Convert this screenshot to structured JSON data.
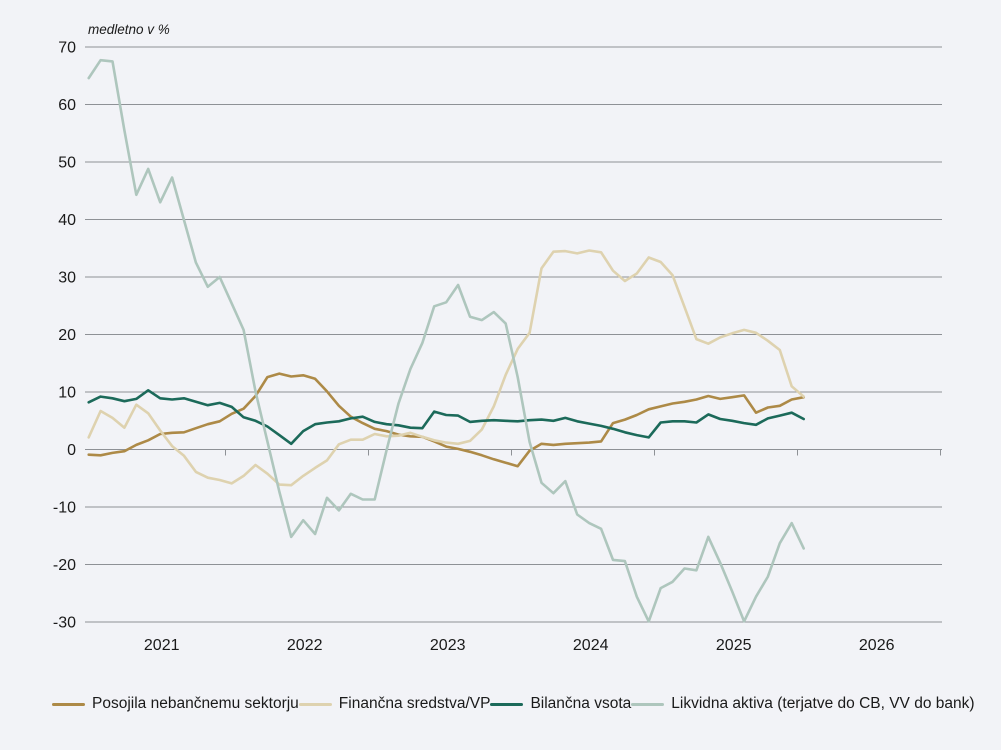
{
  "chart_data": {
    "type": "line",
    "unit_label": "medletno v %",
    "frequency": "monthly",
    "start_month": "2021-01",
    "end_month": "2026-01",
    "x_tick_years": [
      "2021",
      "2022",
      "2023",
      "2024",
      "2025",
      "2026"
    ],
    "y_ticks": [
      70,
      60,
      50,
      40,
      30,
      20,
      10,
      0,
      -10,
      -20,
      -30
    ],
    "ylim": [
      -30,
      70
    ],
    "grid": "horizontal",
    "legend_position": "bottom",
    "colors": {
      "background": "#f2f3f7",
      "gridline": "#8e9196",
      "text": "#1a1a1a"
    },
    "series": [
      {
        "name": "Posojila nebančnemu sektorju",
        "color": "#ad8a47",
        "values": [
          -0.9,
          -1.0,
          -0.6,
          -0.3,
          0.8,
          1.6,
          2.7,
          2.9,
          3.0,
          3.7,
          4.4,
          4.9,
          6.2,
          7.1,
          9.3,
          12.6,
          13.2,
          12.7,
          12.9,
          12.3,
          10.1,
          7.6,
          5.7,
          4.6,
          3.6,
          3.2,
          2.6,
          2.3,
          2.2,
          1.4,
          0.5,
          0.1,
          -0.4,
          -1.0,
          -1.7,
          -2.3,
          -2.9,
          -0.2,
          1.0,
          0.8,
          1.0,
          1.1,
          1.2,
          1.4,
          4.6,
          5.2,
          6.0,
          7.0,
          7.5,
          8.0,
          8.3,
          8.7,
          9.3,
          8.8,
          9.1,
          9.4,
          6.4,
          7.3,
          7.6,
          8.7,
          9.1
        ]
      },
      {
        "name": "Finančna sredstva/VP",
        "color": "#ded2af",
        "values": [
          2.1,
          6.7,
          5.5,
          3.8,
          7.8,
          6.3,
          3.3,
          0.6,
          -1.1,
          -3.9,
          -4.9,
          -5.3,
          -5.9,
          -4.6,
          -2.7,
          -4.2,
          -6.1,
          -6.2,
          -4.6,
          -3.2,
          -1.9,
          0.9,
          1.7,
          1.7,
          2.7,
          2.3,
          2.4,
          2.9,
          2.2,
          1.6,
          1.2,
          1.0,
          1.5,
          3.5,
          7.5,
          13.0,
          17.5,
          20.3,
          31.5,
          34.4,
          34.5,
          34.1,
          34.6,
          34.3,
          31.1,
          29.3,
          30.6,
          33.4,
          32.6,
          30.3,
          24.8,
          19.2,
          18.4,
          19.5,
          20.2,
          20.8,
          20.3,
          18.9,
          17.3,
          11.0,
          9.2
        ]
      },
      {
        "name": "Bilančna vsota",
        "color": "#1c6a5a",
        "values": [
          8.2,
          9.2,
          8.9,
          8.4,
          8.8,
          10.3,
          8.9,
          8.7,
          8.9,
          8.3,
          7.7,
          8.1,
          7.4,
          5.6,
          5.0,
          4.0,
          2.5,
          1.0,
          3.2,
          4.4,
          4.7,
          4.9,
          5.4,
          5.7,
          4.8,
          4.4,
          4.2,
          3.8,
          3.7,
          6.6,
          6.0,
          5.9,
          4.8,
          5.0,
          5.1,
          5.0,
          4.9,
          5.1,
          5.2,
          5.0,
          5.5,
          4.9,
          4.5,
          4.1,
          3.6,
          3.0,
          2.5,
          2.1,
          4.7,
          4.9,
          4.9,
          4.7,
          6.1,
          5.3,
          5.0,
          4.6,
          4.3,
          5.4,
          5.9,
          6.4,
          5.3
        ]
      },
      {
        "name": "Likvidna aktiva (terjatve do CB, VV do bank)",
        "color": "#aec6bd",
        "values": [
          64.6,
          67.7,
          67.5,
          55.5,
          44.3,
          48.8,
          43.0,
          47.3,
          39.9,
          32.5,
          28.3,
          30.0,
          25.4,
          20.8,
          10.1,
          1.4,
          -7.3,
          -15.2,
          -12.3,
          -14.7,
          -8.4,
          -10.6,
          -7.7,
          -8.7,
          -8.7,
          -0.1,
          8.0,
          14.0,
          18.5,
          24.9,
          25.6,
          28.6,
          23.1,
          22.5,
          23.9,
          21.9,
          12.6,
          1.3,
          -5.8,
          -7.6,
          -5.5,
          -11.3,
          -12.8,
          -13.8,
          -19.2,
          -19.4,
          -25.6,
          -29.9,
          -24.1,
          -23.0,
          -20.7,
          -21.0,
          -15.2,
          -19.7,
          -24.7,
          -29.9,
          -25.6,
          -22.1,
          -16.3,
          -12.8,
          -17.2
        ]
      }
    ]
  }
}
